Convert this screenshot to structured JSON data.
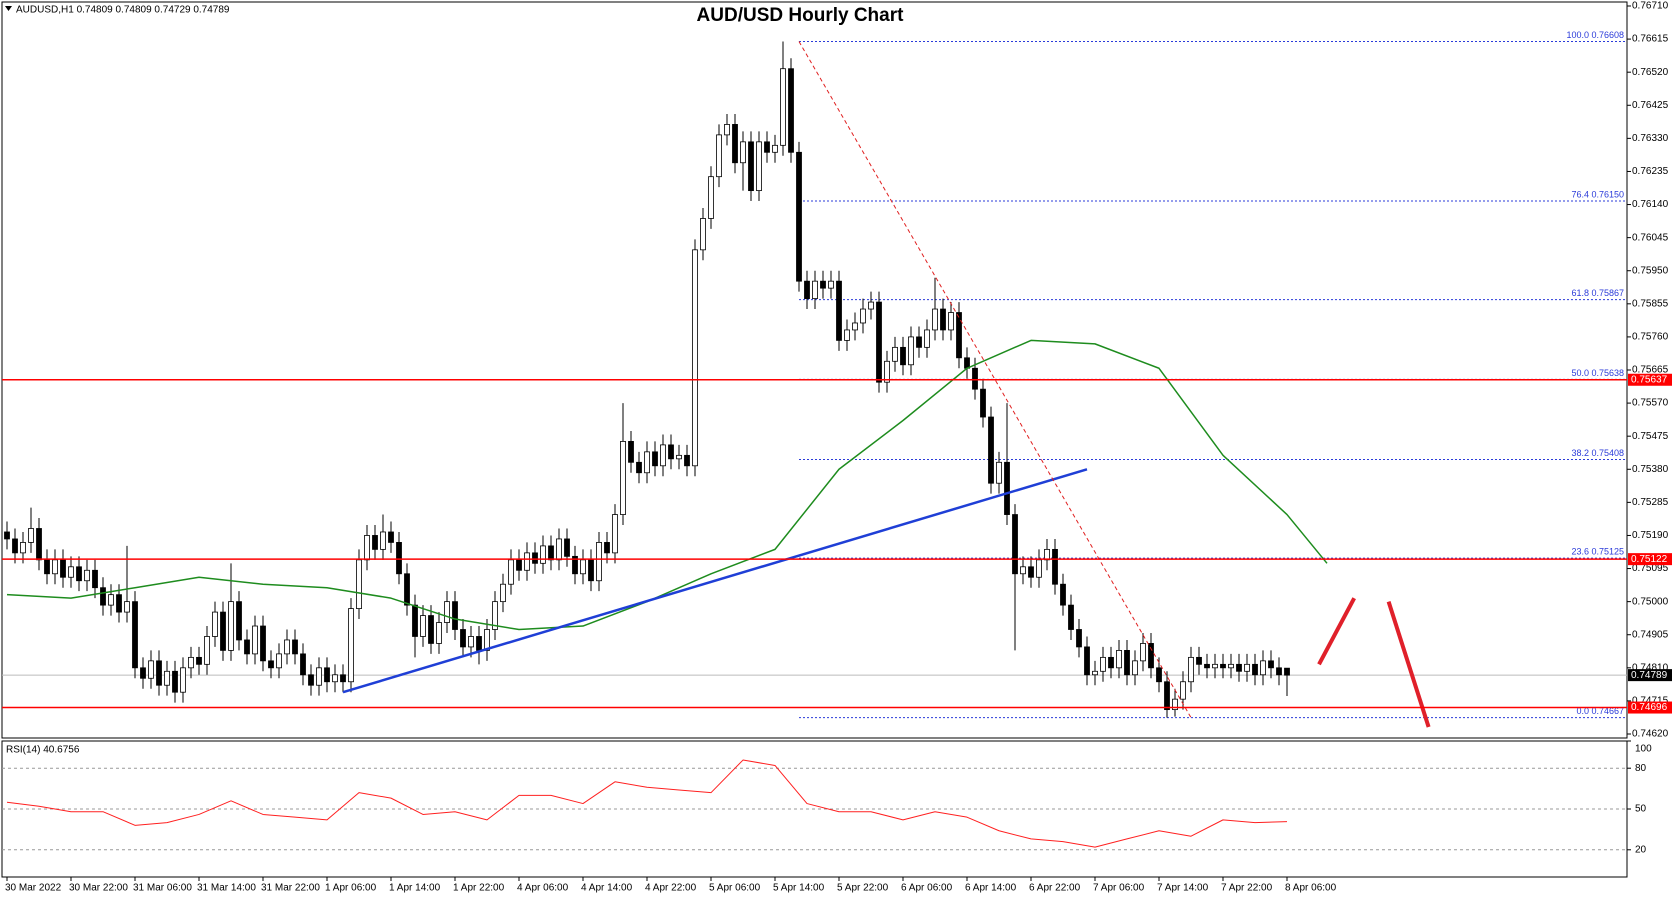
{
  "chart_data": {
    "type": "candlestick",
    "title": "AUD/USD Hourly Chart",
    "header": "AUDUSD,H1  0.74809 0.74809 0.74729 0.74789",
    "categories": [
      "30 Mar 2022",
      null,
      null,
      null,
      null,
      null,
      null,
      null,
      "30 Mar 22:00",
      null,
      null,
      null,
      null,
      null,
      null,
      null,
      "31 Mar 06:00",
      null,
      null,
      null,
      null,
      null,
      null,
      null,
      "31 Mar 14:00",
      null,
      null,
      null,
      null,
      null,
      null,
      null,
      "31 Mar 22:00",
      null,
      null,
      null,
      null,
      null,
      null,
      null,
      "1 Apr 06:00",
      null,
      null,
      null,
      null,
      null,
      null,
      null,
      "1 Apr 14:00",
      null,
      null,
      null,
      null,
      null,
      null,
      null,
      "1 Apr 22:00",
      null,
      null,
      null,
      null,
      null,
      null,
      null,
      "4 Apr 06:00",
      null,
      null,
      null,
      null,
      null,
      null,
      null,
      "4 Apr 14:00",
      null,
      null,
      null,
      null,
      null,
      null,
      null,
      "4 Apr 22:00",
      null,
      null,
      null,
      null,
      null,
      null,
      null,
      "5 Apr 06:00",
      null,
      null,
      null,
      null,
      null,
      null,
      null,
      "5 Apr 14:00",
      null,
      null,
      null,
      null,
      null,
      null,
      null,
      "5 Apr 22:00",
      null,
      null,
      null,
      null,
      null,
      null,
      null,
      "6 Apr 06:00",
      null,
      null,
      null,
      null,
      null,
      null,
      null,
      "6 Apr 14:00",
      null,
      null,
      null,
      null,
      null,
      null,
      null,
      "6 Apr 22:00",
      null,
      null,
      null,
      null,
      null,
      null,
      null,
      "7 Apr 06:00",
      null,
      null,
      null,
      null,
      null,
      null,
      null,
      "7 Apr 14:00",
      null,
      null,
      null,
      null,
      null,
      null,
      null,
      "7 Apr 22:00",
      null,
      null,
      null,
      null,
      null,
      null,
      null,
      "8 Apr 06:00"
    ],
    "open": [
      0.752,
      0.7518,
      0.7514,
      0.7517,
      0.7521,
      0.7512,
      0.7508,
      0.7512,
      0.7507,
      0.751,
      0.7506,
      0.7509,
      0.7504,
      0.7499,
      0.7502,
      0.7497,
      0.75,
      0.7481,
      0.7478,
      0.7483,
      0.7476,
      0.748,
      0.7474,
      0.7481,
      0.7484,
      0.7482,
      0.749,
      0.7497,
      0.7486,
      0.75,
      0.7489,
      0.7485,
      0.7493,
      0.7483,
      0.7481,
      0.7485,
      0.7489,
      0.7485,
      0.7479,
      0.7476,
      0.7481,
      0.7477,
      0.7479,
      0.7477,
      0.7498,
      0.7512,
      0.7519,
      0.7515,
      0.752,
      0.7517,
      0.7508,
      0.7499,
      0.749,
      0.7496,
      0.7488,
      0.7494,
      0.75,
      0.7492,
      0.7487,
      0.749,
      0.7486,
      0.7492,
      0.75,
      0.7505,
      0.7512,
      0.7509,
      0.7514,
      0.7511,
      0.7516,
      0.7512,
      0.7518,
      0.7513,
      0.7508,
      0.7512,
      0.7506,
      0.7517,
      0.7514,
      0.7525,
      0.7546,
      0.754,
      0.7537,
      0.7543,
      0.7539,
      0.7545,
      0.7541,
      0.7542,
      0.7539,
      0.7601,
      0.761,
      0.7622,
      0.7634,
      0.7637,
      0.7626,
      0.7632,
      0.7618,
      0.7632,
      0.7629,
      0.7631,
      0.7653,
      0.7629,
      0.7592,
      0.7587,
      0.7592,
      0.759,
      0.7592,
      0.7575,
      0.7578,
      0.758,
      0.7584,
      0.7586,
      0.7563,
      0.7569,
      0.7573,
      0.7568,
      0.7576,
      0.7573,
      0.7578,
      0.7584,
      0.7578,
      0.7583,
      0.757,
      0.7567,
      0.7561,
      0.7553,
      0.7534,
      0.754,
      0.7525,
      0.7508,
      0.751,
      0.7507,
      0.7512,
      0.7515,
      0.7505,
      0.7499,
      0.7492,
      0.7487,
      0.7479,
      0.748,
      0.7484,
      0.7481,
      0.7486,
      0.7479,
      0.7483,
      0.7488,
      0.7481,
      0.7477,
      0.7469,
      0.7472,
      0.7477,
      0.7484,
      0.7482,
      0.7481,
      0.7482,
      0.7481,
      0.7482,
      0.748,
      0.7482,
      0.7479,
      0.7483,
      0.7481,
      0.74809
    ],
    "high": [
      0.7523,
      0.7521,
      0.752,
      0.7527,
      0.7524,
      0.7515,
      0.7515,
      0.7515,
      0.7513,
      0.7513,
      0.7512,
      0.7512,
      0.7507,
      0.7505,
      0.7505,
      0.7516,
      0.7503,
      0.7484,
      0.7486,
      0.7486,
      0.7483,
      0.7483,
      0.7484,
      0.7487,
      0.7487,
      0.7493,
      0.75,
      0.75,
      0.7511,
      0.7503,
      0.7492,
      0.7496,
      0.7496,
      0.7486,
      0.7488,
      0.7492,
      0.7492,
      0.7488,
      0.7482,
      0.7484,
      0.7484,
      0.7482,
      0.7482,
      0.7501,
      0.7515,
      0.7522,
      0.7522,
      0.7525,
      0.7523,
      0.752,
      0.7511,
      0.7502,
      0.7499,
      0.7499,
      0.7497,
      0.7503,
      0.7503,
      0.7495,
      0.7493,
      0.7493,
      0.7495,
      0.7503,
      0.7508,
      0.7515,
      0.7515,
      0.7517,
      0.7517,
      0.7519,
      0.7519,
      0.7521,
      0.7521,
      0.7516,
      0.7515,
      0.7515,
      0.752,
      0.752,
      0.7528,
      0.7557,
      0.7549,
      0.7543,
      0.7546,
      0.7546,
      0.7548,
      0.7548,
      0.7545,
      0.7545,
      0.7604,
      0.7613,
      0.7625,
      0.7637,
      0.764,
      0.764,
      0.7635,
      0.7635,
      0.7635,
      0.7635,
      0.7634,
      0.76608,
      0.7656,
      0.7632,
      0.7595,
      0.7595,
      0.7595,
      0.7595,
      0.7595,
      0.7581,
      0.7583,
      0.7587,
      0.7589,
      0.7589,
      0.7572,
      0.7576,
      0.7576,
      0.7579,
      0.7579,
      0.7581,
      0.7593,
      0.7587,
      0.7586,
      0.7586,
      0.7573,
      0.757,
      0.7564,
      0.7556,
      0.7543,
      0.7557,
      0.7528,
      0.7513,
      0.7513,
      0.7515,
      0.7518,
      0.7518,
      0.7508,
      0.7502,
      0.7495,
      0.749,
      0.7483,
      0.7487,
      0.7487,
      0.7489,
      0.7489,
      0.7486,
      0.7491,
      0.7491,
      0.7484,
      0.748,
      0.7475,
      0.748,
      0.7487,
      0.7487,
      0.7485,
      0.7485,
      0.7485,
      0.7485,
      0.7485,
      0.7485,
      0.7485,
      0.7486,
      0.7486,
      0.7484,
      0.74809
    ],
    "low": [
      0.7515,
      0.7511,
      0.7511,
      0.7514,
      0.7509,
      0.7505,
      0.7505,
      0.7504,
      0.7504,
      0.7503,
      0.7503,
      0.7501,
      0.7496,
      0.7496,
      0.7494,
      0.7494,
      0.7478,
      0.7475,
      0.7475,
      0.7473,
      0.7473,
      0.7471,
      0.7471,
      0.7478,
      0.7479,
      0.7479,
      0.7487,
      0.7483,
      0.7483,
      0.7486,
      0.7482,
      0.7482,
      0.748,
      0.7478,
      0.7478,
      0.7482,
      0.7482,
      0.7476,
      0.7473,
      0.7473,
      0.7474,
      0.7474,
      0.7474,
      0.7474,
      0.7495,
      0.7509,
      0.7512,
      0.7512,
      0.7514,
      0.7505,
      0.7496,
      0.7484,
      0.7487,
      0.7485,
      0.7485,
      0.7491,
      0.7489,
      0.7484,
      0.7484,
      0.7482,
      0.7483,
      0.7489,
      0.7497,
      0.7502,
      0.7506,
      0.7506,
      0.7508,
      0.7508,
      0.7509,
      0.7509,
      0.751,
      0.7505,
      0.7505,
      0.7503,
      0.7503,
      0.7511,
      0.7511,
      0.7522,
      0.7537,
      0.7534,
      0.7534,
      0.7536,
      0.7536,
      0.7538,
      0.7538,
      0.7536,
      0.7536,
      0.7598,
      0.7607,
      0.7619,
      0.7631,
      0.7623,
      0.7618,
      0.7615,
      0.7615,
      0.7626,
      0.7626,
      0.7628,
      0.7626,
      0.7589,
      0.7584,
      0.7584,
      0.7587,
      0.7587,
      0.7572,
      0.7572,
      0.7575,
      0.7577,
      0.7581,
      0.756,
      0.756,
      0.7566,
      0.7565,
      0.7565,
      0.757,
      0.757,
      0.7575,
      0.7575,
      0.7575,
      0.7567,
      0.7564,
      0.7558,
      0.755,
      0.7531,
      0.7531,
      0.7522,
      0.7486,
      0.7505,
      0.7504,
      0.7504,
      0.7509,
      0.7502,
      0.7496,
      0.7489,
      0.7484,
      0.7476,
      0.7476,
      0.7477,
      0.7478,
      0.7478,
      0.7476,
      0.7476,
      0.748,
      0.7478,
      0.7474,
      0.74667,
      0.7467,
      0.7469,
      0.7474,
      0.7479,
      0.7478,
      0.7478,
      0.7478,
      0.7478,
      0.7477,
      0.7477,
      0.7476,
      0.7476,
      0.7478,
      0.7476,
      0.74729
    ],
    "close": [
      0.7518,
      0.7514,
      0.7517,
      0.7521,
      0.7512,
      0.7508,
      0.7512,
      0.7507,
      0.751,
      0.7506,
      0.7509,
      0.7504,
      0.7499,
      0.7502,
      0.7497,
      0.75,
      0.7481,
      0.7478,
      0.7483,
      0.7476,
      0.748,
      0.7474,
      0.7481,
      0.7484,
      0.7482,
      0.749,
      0.7497,
      0.7486,
      0.75,
      0.7489,
      0.7485,
      0.7493,
      0.7483,
      0.7481,
      0.7485,
      0.7489,
      0.7485,
      0.7479,
      0.7476,
      0.7481,
      0.7477,
      0.7479,
      0.7477,
      0.7498,
      0.7512,
      0.7519,
      0.7515,
      0.752,
      0.7517,
      0.7508,
      0.7499,
      0.749,
      0.7496,
      0.7488,
      0.7494,
      0.75,
      0.7492,
      0.7487,
      0.749,
      0.7486,
      0.7492,
      0.75,
      0.7505,
      0.7512,
      0.7509,
      0.7514,
      0.7511,
      0.7516,
      0.7512,
      0.7518,
      0.7513,
      0.7508,
      0.7512,
      0.7506,
      0.7517,
      0.7514,
      0.7525,
      0.7546,
      0.754,
      0.7537,
      0.7543,
      0.7539,
      0.7545,
      0.7541,
      0.7542,
      0.7539,
      0.7601,
      0.761,
      0.7622,
      0.7634,
      0.7637,
      0.7626,
      0.7632,
      0.7618,
      0.7632,
      0.7629,
      0.7631,
      0.7653,
      0.7629,
      0.7592,
      0.7587,
      0.7592,
      0.759,
      0.7592,
      0.7575,
      0.7578,
      0.758,
      0.7584,
      0.7586,
      0.7563,
      0.7569,
      0.7573,
      0.7568,
      0.7576,
      0.7573,
      0.7578,
      0.7584,
      0.7578,
      0.7583,
      0.757,
      0.7567,
      0.7561,
      0.7553,
      0.7534,
      0.754,
      0.7525,
      0.7508,
      0.751,
      0.7507,
      0.7512,
      0.7515,
      0.7505,
      0.7499,
      0.7492,
      0.7487,
      0.7479,
      0.748,
      0.7484,
      0.7481,
      0.7486,
      0.7479,
      0.7483,
      0.7488,
      0.7481,
      0.7477,
      0.7469,
      0.7472,
      0.7477,
      0.7484,
      0.7482,
      0.7481,
      0.7482,
      0.7481,
      0.7482,
      0.748,
      0.7482,
      0.7479,
      0.7483,
      0.7481,
      0.7479,
      0.74789
    ],
    "ylim": [
      0.7462,
      0.7671
    ],
    "yticks": [
      {
        "value": 0.7671,
        "label": "0.76710"
      },
      0.76615,
      {
        "value": 0.7652,
        "label": "0.76520"
      },
      0.76425,
      {
        "value": 0.7633,
        "label": "0.76330"
      },
      0.76235,
      {
        "value": 0.7614,
        "label": "0.76140"
      },
      0.76045,
      {
        "value": 0.7595,
        "label": "0.75950"
      },
      0.75855,
      {
        "value": 0.7576,
        "label": "0.75760"
      },
      0.75665,
      {
        "value": 0.7557,
        "label": "0.75570"
      },
      0.75475,
      {
        "value": 0.7538,
        "label": "0.75380"
      },
      0.75285,
      {
        "value": 0.7519,
        "label": "0.75190"
      },
      0.75095,
      {
        "value": 0.75,
        "label": "0.75000"
      },
      0.74905,
      {
        "value": 0.7481,
        "label": "0.74810"
      },
      0.74715,
      {
        "value": 0.7462,
        "label": "0.74620"
      }
    ],
    "ma": {
      "color": "#1e8c1e",
      "x": [
        0,
        8,
        16,
        24,
        32,
        40,
        48,
        56,
        64,
        72,
        80,
        88,
        96,
        104,
        112,
        120,
        128,
        136,
        144,
        152,
        160,
        165
      ],
      "values": [
        0.7502,
        0.7501,
        0.7504,
        0.7507,
        0.7505,
        0.7504,
        0.7501,
        0.7495,
        0.7492,
        0.7493,
        0.75,
        0.7508,
        0.7515,
        0.7538,
        0.7552,
        0.7567,
        0.7575,
        0.7574,
        0.7567,
        0.7542,
        0.7525,
        0.7511
      ]
    },
    "trendline": {
      "color": "#1f3fd6",
      "x": [
        42,
        135
      ],
      "values": [
        0.7474,
        0.7538
      ]
    },
    "swing_line": {
      "color": "#e02020",
      "x": [
        99,
        148
      ],
      "values": [
        0.76608,
        0.74667
      ]
    },
    "forecast": [
      {
        "color": "#e0202a",
        "x": [
          164,
          168.4
        ],
        "values": [
          0.7482,
          0.7501
        ]
      },
      {
        "color": "#e0202a",
        "x": [
          172.7,
          177.7
        ],
        "values": [
          0.75,
          0.7464
        ]
      }
    ],
    "fib_start": 99,
    "fib_color": "#2b3bd9",
    "fib": [
      {
        "value": 0.76608,
        "label": "100.0 0.76608"
      },
      {
        "value": 0.7615,
        "label": "76.4 0.76150"
      },
      {
        "value": 0.75867,
        "label": "61.8 0.75867"
      },
      {
        "value": 0.75638,
        "label": "50.0 0.75638"
      },
      {
        "value": 0.75408,
        "label": "38.2 0.75408"
      },
      {
        "value": 0.75125,
        "label": "23.6 0.75125"
      },
      {
        "value": 0.74667,
        "label": "0.0 0.74667"
      }
    ],
    "hlines": [
      {
        "value": 0.75637,
        "color": "#ff0000"
      },
      {
        "value": 0.75122,
        "color": "#ff0000"
      },
      {
        "value": 0.74696,
        "color": "#ff0000"
      }
    ],
    "last_price": 0.74789,
    "rsi_label": "RSI(14) 40.6756",
    "rsi": {
      "color": "#ff2020",
      "x": [
        0,
        4,
        8,
        12,
        16,
        20,
        24,
        28,
        32,
        36,
        40,
        44,
        48,
        52,
        56,
        60,
        64,
        68,
        72,
        76,
        80,
        84,
        88,
        92,
        96,
        100,
        104,
        108,
        112,
        116,
        120,
        124,
        128,
        132,
        136,
        140,
        144,
        148,
        152,
        156,
        160
      ],
      "values": [
        55,
        52,
        48,
        48,
        38,
        40,
        46,
        56,
        46,
        44,
        42,
        62,
        58,
        46,
        48,
        42,
        60,
        60,
        54,
        70,
        66,
        64,
        62,
        86,
        82,
        54,
        48,
        48,
        42,
        48,
        44,
        34,
        28,
        26,
        22,
        28,
        34,
        30,
        42,
        40,
        40.6756
      ]
    },
    "rsi_ylim": [
      0,
      100
    ],
    "rsi_yticks": [
      100,
      80,
      50,
      20
    ]
  }
}
